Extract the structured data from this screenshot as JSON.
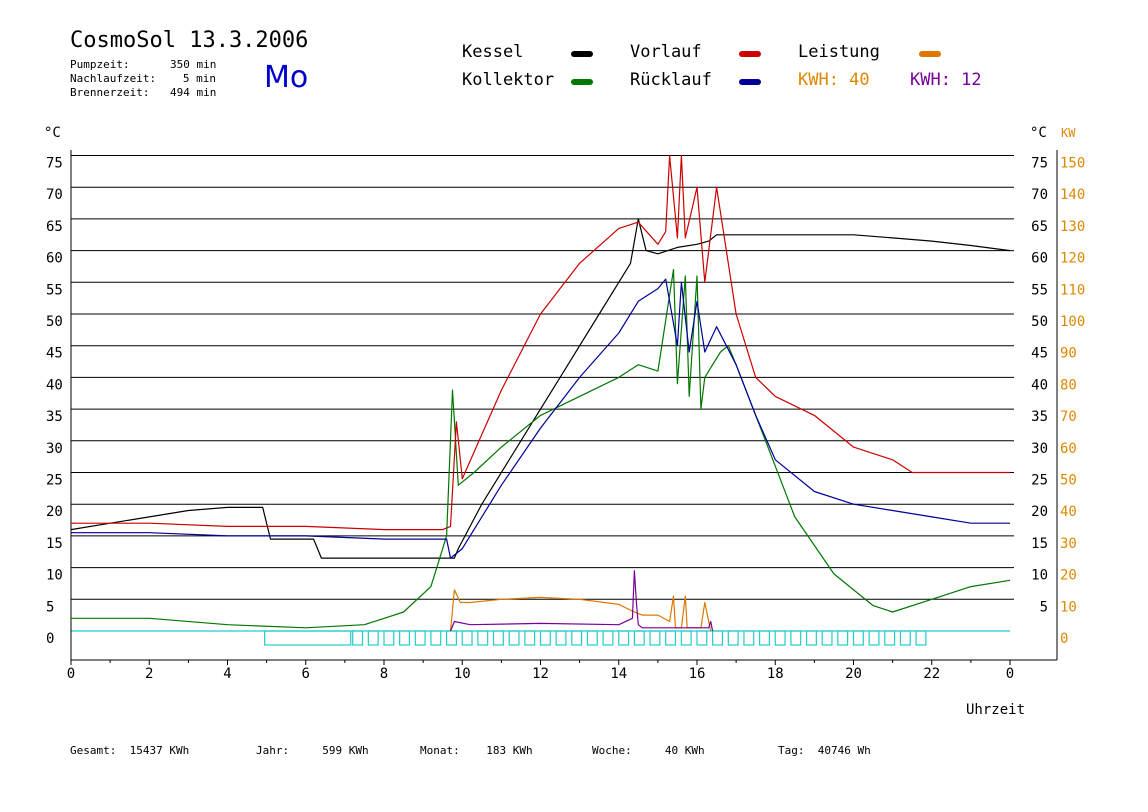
{
  "header": {
    "title": "CosmoSol 13.3.2006",
    "day": "Mo",
    "stats": [
      {
        "label": "Pumpzeit:",
        "value": "350 min"
      },
      {
        "label": "Nachlaufzeit:",
        "value": "5 min"
      },
      {
        "label": "Brennerzeit:",
        "value": "494 min"
      }
    ]
  },
  "legend": {
    "kessel": "Kessel",
    "kollektor": "Kollektor",
    "vorlauf": "Vorlauf",
    "ruecklauf": "Rücklauf",
    "leistung": "Leistung",
    "kwh1": "KWH: 40",
    "kwh2": "KWH: 12"
  },
  "footer": {
    "gesamt_label": "Gesamt:",
    "gesamt_value": "15437 KWh",
    "jahr_label": "Jahr:",
    "jahr_value": "599 KWh",
    "monat_label": "Monat:",
    "monat_value": "183 KWh",
    "woche_label": "Woche:",
    "woche_value": "40 KWh",
    "tag_label": "Tag:",
    "tag_value": "40746 Wh"
  },
  "colors": {
    "kessel": "#000000",
    "kollektor": "#007700",
    "vorlauf": "#cc0000",
    "ruecklauf": "#000099",
    "leistung": "#dd7700",
    "purple": "#770099",
    "pump": "#22cccc",
    "kw_axis": "#dd8800"
  },
  "chart_data": {
    "type": "line",
    "xlabel": "Uhrzeit",
    "ylabel": "°C",
    "ylabel_right": "KW",
    "xlim": [
      0,
      24
    ],
    "ylim": [
      -5,
      80
    ],
    "ylim_right": [
      0,
      150
    ],
    "x_ticks": [
      "0",
      "2",
      "4",
      "6",
      "8",
      "10",
      "12",
      "14",
      "16",
      "18",
      "20",
      "22",
      "0"
    ],
    "y_ticks": [
      "0",
      "5",
      "10",
      "15",
      "20",
      "25",
      "30",
      "35",
      "40",
      "45",
      "50",
      "55",
      "60",
      "65",
      "70",
      "75"
    ],
    "y_ticks_right_c": [
      "5",
      "10",
      "15",
      "20",
      "25",
      "30",
      "35",
      "40",
      "45",
      "50",
      "55",
      "60",
      "65",
      "70",
      "75"
    ],
    "y_ticks_right_kw": [
      "0",
      "10",
      "20",
      "30",
      "40",
      "50",
      "60",
      "70",
      "80",
      "90",
      "100",
      "110",
      "120",
      "130",
      "140",
      "150"
    ],
    "series": [
      {
        "name": "Kessel",
        "color": "#000000",
        "x": [
          0,
          1,
          2,
          3,
          4,
          4.9,
          5.1,
          6.2,
          6.4,
          7.5,
          9.8,
          9.9,
          10.5,
          11.5,
          12.5,
          13.5,
          14.0,
          14.3,
          14.5,
          14.7,
          15.0,
          15.5,
          16.0,
          16.3,
          16.5,
          17,
          18,
          20,
          21,
          22,
          23,
          24
        ],
        "y": [
          16,
          17,
          18,
          19,
          19.5,
          19.5,
          14.5,
          14.5,
          11.5,
          11.5,
          11.5,
          13,
          20,
          30,
          40,
          50,
          55,
          58,
          65,
          60,
          59.5,
          60.5,
          61,
          61.5,
          62.5,
          62.5,
          62.5,
          62.5,
          62,
          61.5,
          60.8,
          60
        ]
      },
      {
        "name": "Kollektor",
        "color": "#007700",
        "x": [
          0,
          2,
          4,
          6,
          7.5,
          8.5,
          9.2,
          9.6,
          9.75,
          9.9,
          10.3,
          11,
          12,
          13,
          14,
          14.5,
          15,
          15.4,
          15.5,
          15.7,
          15.8,
          16,
          16.1,
          16.2,
          16.3,
          16.6,
          16.8,
          17,
          17.5,
          18,
          18.5,
          19.5,
          20.5,
          21,
          22,
          23,
          24
        ],
        "y": [
          2,
          2,
          1,
          0.5,
          1,
          3,
          7,
          15,
          38,
          23,
          25,
          29,
          34,
          37,
          40,
          42,
          41,
          57,
          39,
          56,
          37,
          56,
          35,
          40,
          41,
          44,
          45,
          42,
          34,
          26,
          18,
          9,
          4,
          3,
          5,
          7,
          8
        ]
      },
      {
        "name": "Vorlauf",
        "color": "#cc0000",
        "x": [
          0,
          2,
          4,
          6,
          8,
          9.5,
          9.7,
          9.85,
          10,
          10.5,
          11,
          12,
          13,
          14,
          14.5,
          15,
          15.2,
          15.3,
          15.5,
          15.6,
          15.7,
          16,
          16.2,
          16.5,
          17,
          17.5,
          18,
          19,
          20,
          21,
          21.5,
          22,
          23,
          24
        ],
        "y": [
          17,
          17,
          16.5,
          16.5,
          16,
          16,
          16.5,
          33,
          24,
          31,
          38,
          50,
          58,
          63.5,
          64.5,
          61,
          63,
          75,
          62,
          75,
          62,
          70,
          55,
          70,
          50,
          40,
          37,
          34,
          29,
          27,
          25,
          25,
          25,
          25
        ]
      },
      {
        "name": "Rücklauf",
        "color": "#000099",
        "x": [
          0,
          2,
          4,
          6,
          8,
          9.6,
          9.7,
          10,
          11,
          12,
          13,
          14,
          14.5,
          15,
          15.2,
          15.5,
          15.6,
          15.8,
          16,
          16.2,
          16.5,
          17,
          17.5,
          18,
          19,
          20,
          21,
          22,
          23,
          24
        ],
        "y": [
          15.5,
          15.5,
          15,
          15,
          14.5,
          14.5,
          11.5,
          13,
          23,
          32,
          40,
          47,
          52,
          54,
          55.5,
          45,
          55,
          44,
          52,
          44,
          48,
          42,
          34,
          27,
          22,
          20,
          19,
          18,
          17,
          17
        ]
      },
      {
        "name": "Leistung",
        "color": "#dd7700",
        "x": [
          9.7,
          9.8,
          9.95,
          10.2,
          11,
          12,
          13,
          14,
          14.4,
          14.6,
          15,
          15.3,
          15.4,
          15.45,
          15.6,
          15.7,
          15.75,
          15.85,
          16,
          16.1,
          16.2,
          16.35
        ],
        "y": [
          0,
          6.5,
          4.5,
          4.5,
          5,
          5.3,
          5,
          4.2,
          3,
          2.5,
          2.5,
          1.5,
          5.5,
          0.5,
          0.5,
          5.5,
          0.5,
          0.5,
          0.5,
          0.5,
          4.5,
          0
        ]
      },
      {
        "name": "Leistung KWH 12",
        "color": "#770099",
        "x": [
          9.7,
          9.8,
          10.2,
          12,
          14,
          14.35,
          14.4,
          14.45,
          14.5,
          14.6,
          16,
          16.3,
          16.35,
          16.4
        ],
        "y": [
          0,
          1.5,
          1,
          1.2,
          1,
          2,
          9.5,
          4.5,
          1,
          0.5,
          0.5,
          0.5,
          1.5,
          0
        ]
      }
    ],
    "pump_bars": [
      {
        "x1": 4.95,
        "x2": 7.15
      },
      {
        "x1": 7.2,
        "x2": 7.45
      },
      {
        "x1": 7.6,
        "x2": 7.85
      },
      {
        "x1": 8.0,
        "x2": 8.25
      },
      {
        "x1": 8.4,
        "x2": 8.65
      },
      {
        "x1": 8.8,
        "x2": 9.05
      },
      {
        "x1": 9.2,
        "x2": 9.45
      },
      {
        "x1": 9.6,
        "x2": 9.85
      },
      {
        "x1": 10.0,
        "x2": 10.25
      },
      {
        "x1": 10.4,
        "x2": 10.65
      },
      {
        "x1": 10.8,
        "x2": 11.05
      },
      {
        "x1": 11.2,
        "x2": 11.45
      },
      {
        "x1": 11.6,
        "x2": 11.85
      },
      {
        "x1": 12.0,
        "x2": 12.25
      },
      {
        "x1": 12.4,
        "x2": 12.65
      },
      {
        "x1": 12.8,
        "x2": 13.05
      },
      {
        "x1": 13.2,
        "x2": 13.45
      },
      {
        "x1": 13.6,
        "x2": 13.85
      },
      {
        "x1": 14.0,
        "x2": 14.25
      },
      {
        "x1": 14.4,
        "x2": 14.65
      },
      {
        "x1": 14.8,
        "x2": 15.05
      },
      {
        "x1": 15.2,
        "x2": 15.45
      },
      {
        "x1": 15.6,
        "x2": 15.85
      },
      {
        "x1": 16.0,
        "x2": 16.25
      },
      {
        "x1": 16.4,
        "x2": 16.65
      },
      {
        "x1": 16.8,
        "x2": 17.05
      },
      {
        "x1": 17.2,
        "x2": 17.45
      },
      {
        "x1": 17.6,
        "x2": 17.85
      },
      {
        "x1": 18.0,
        "x2": 18.25
      },
      {
        "x1": 18.4,
        "x2": 18.65
      },
      {
        "x1": 18.8,
        "x2": 19.05
      },
      {
        "x1": 19.2,
        "x2": 19.45
      },
      {
        "x1": 19.6,
        "x2": 19.85
      },
      {
        "x1": 20.0,
        "x2": 20.25
      },
      {
        "x1": 20.4,
        "x2": 20.65
      },
      {
        "x1": 20.8,
        "x2": 21.05
      },
      {
        "x1": 21.2,
        "x2": 21.45
      },
      {
        "x1": 21.6,
        "x2": 21.85
      }
    ],
    "grid": true,
    "legend_position": "top"
  }
}
